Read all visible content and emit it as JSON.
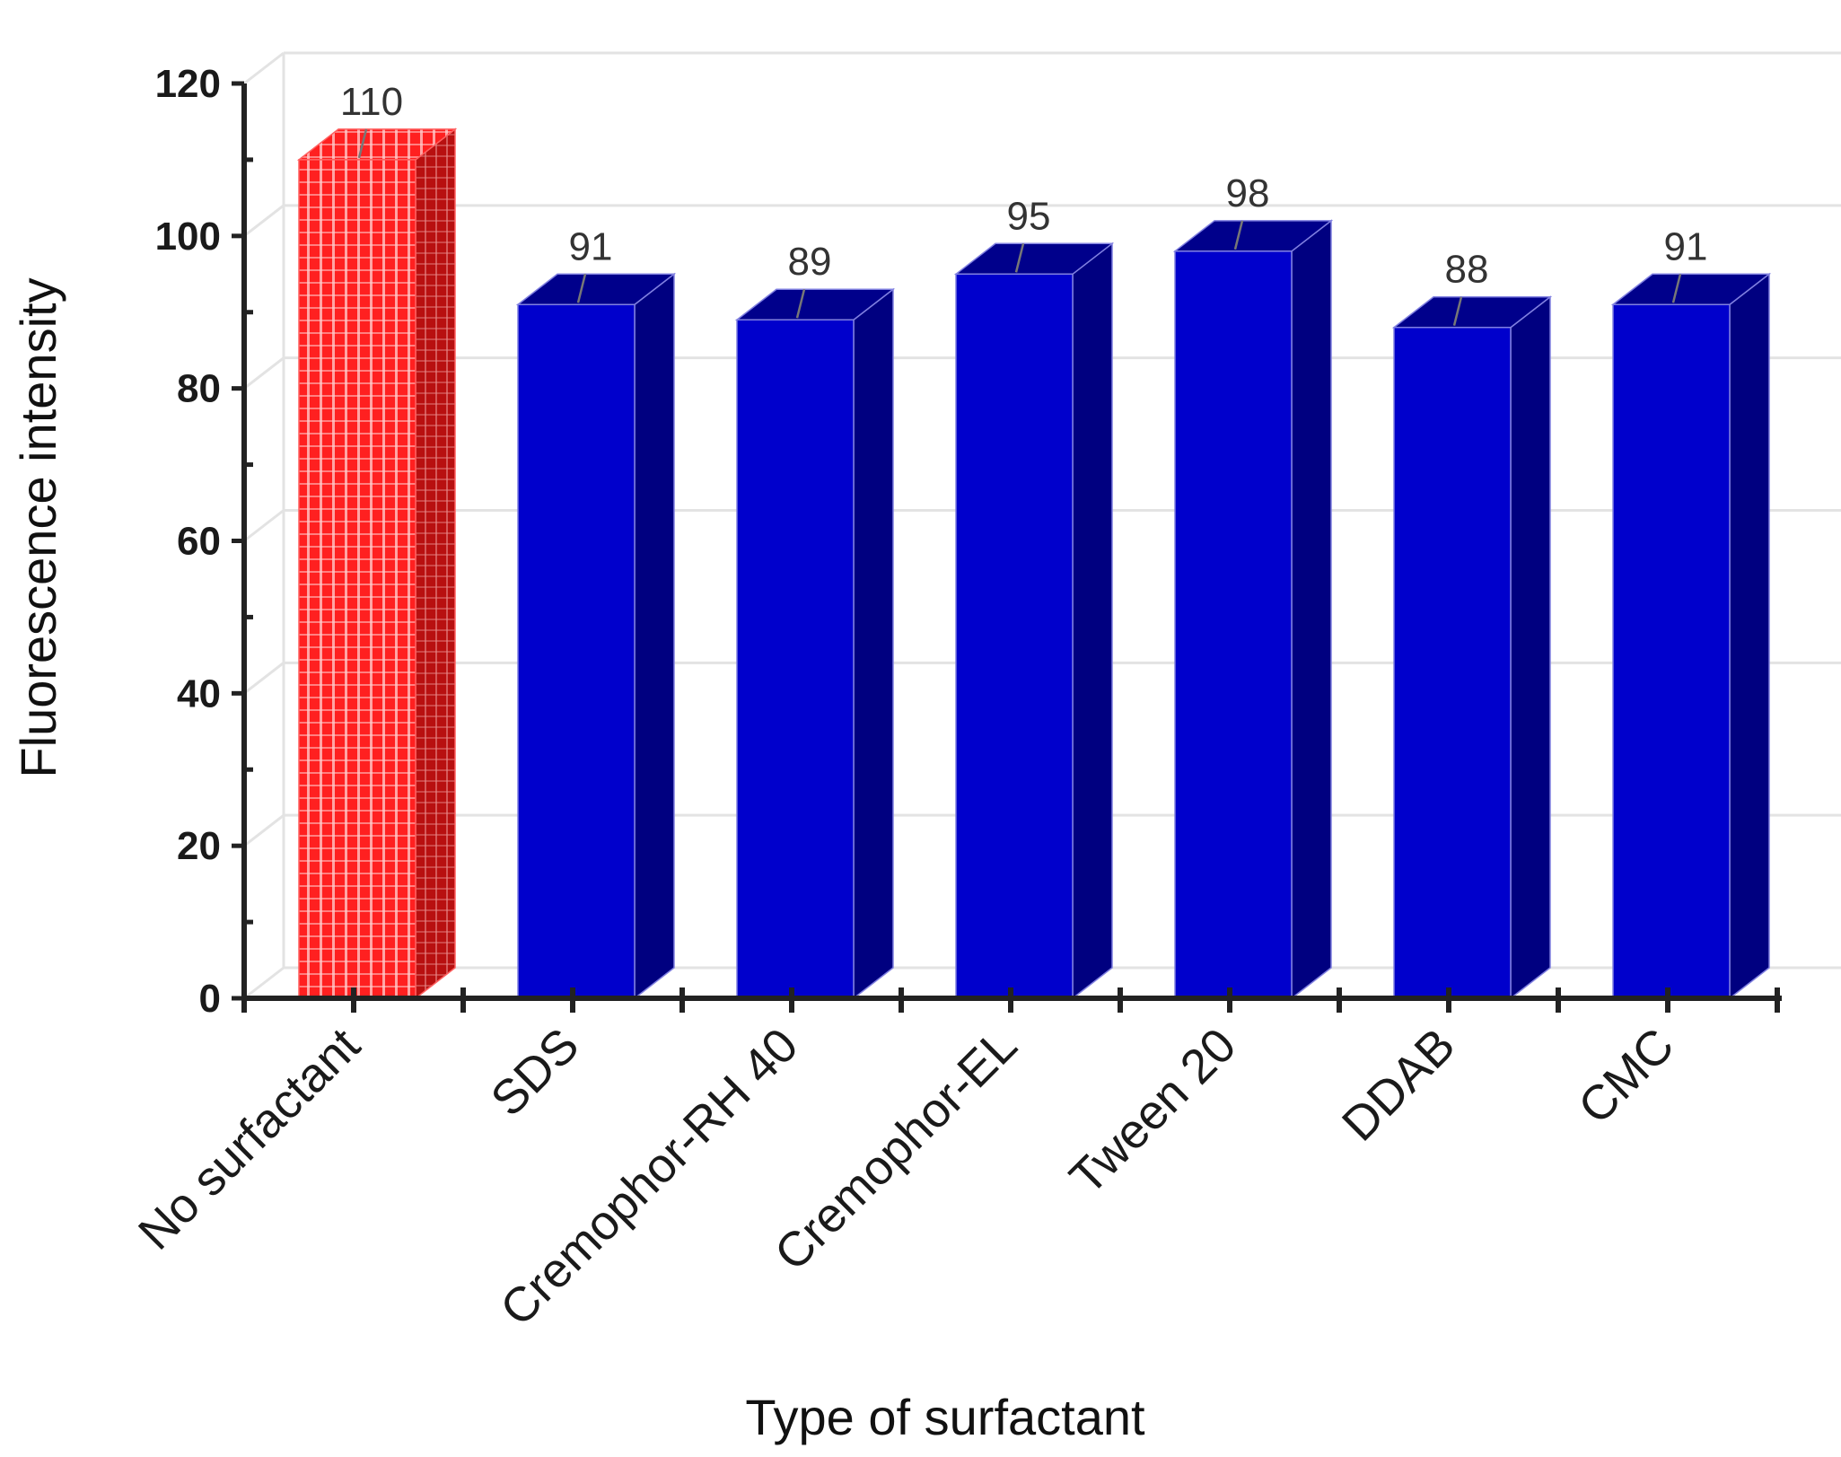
{
  "chart_data": {
    "type": "bar",
    "style": "3d-column",
    "categories": [
      "No surfactant",
      "SDS",
      "Cremophor-RH 40",
      "Cremophor-EL",
      "Tween 20",
      "DDAB",
      "CMC"
    ],
    "values": [
      110,
      91,
      89,
      95,
      98,
      88,
      91
    ],
    "data_labels": [
      "110",
      "91",
      "89",
      "95",
      "98",
      "88",
      "91"
    ],
    "title": "",
    "xlabel": "Type of surfactant",
    "ylabel": "Fluorescence intensity",
    "ylim": [
      0,
      120
    ],
    "yticks": [
      0,
      20,
      40,
      60,
      80,
      100,
      120
    ],
    "ytick_labels": [
      "0",
      "20",
      "40",
      "60",
      "80",
      "100",
      "120"
    ],
    "grid": true,
    "legend": "none",
    "colors": {
      "highlight_front": "#ff2020",
      "highlight_side": "#b81010",
      "highlight_pattern": "#ffd0d0",
      "bar_front": "#0000cc",
      "bar_side": "#000080",
      "bar_top": "#00008b",
      "bar_edge": "#8080e0",
      "axis": "#222222",
      "grid": "#e3e3e3",
      "leader": "#777777"
    },
    "highlight_index": 0
  }
}
